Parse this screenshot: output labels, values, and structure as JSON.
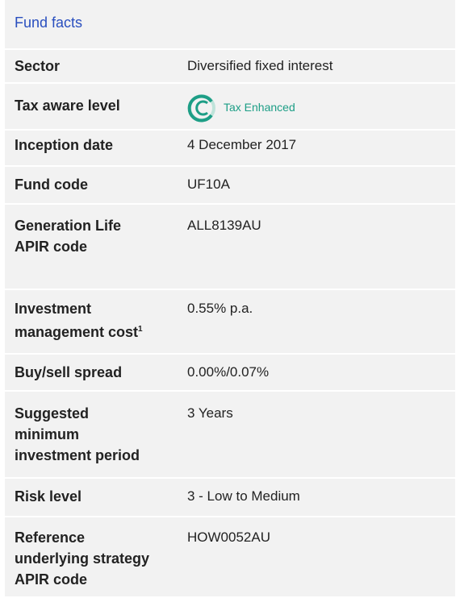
{
  "title": "Fund facts",
  "rows": [
    {
      "label": [
        "Sector"
      ],
      "value": "Diversified fixed interest"
    },
    {
      "label": [
        "Tax aware level"
      ],
      "badge": "Tax Enhanced"
    },
    {
      "label": [
        "Inception date"
      ],
      "value": "4 December 2017"
    },
    {
      "label": [
        "Fund code"
      ],
      "value": "UF10A"
    },
    {
      "label": [
        "Generation Life",
        "APIR code"
      ],
      "value": "ALL8139AU"
    },
    {
      "label": [
        "Investment",
        "management cost"
      ],
      "footnote": "1",
      "value": "0.55% p.a."
    },
    {
      "label": [
        "Buy/sell spread"
      ],
      "value": "0.00%/0.07%"
    },
    {
      "label": [
        "Suggested",
        "minimum",
        "investment period"
      ],
      "value": "3  Years"
    },
    {
      "label": [
        "Risk level"
      ],
      "value": "3 - Low to Medium"
    },
    {
      "label": [
        "Reference",
        "underlying strategy",
        "APIR code"
      ],
      "value": "HOW0052AU"
    }
  ]
}
